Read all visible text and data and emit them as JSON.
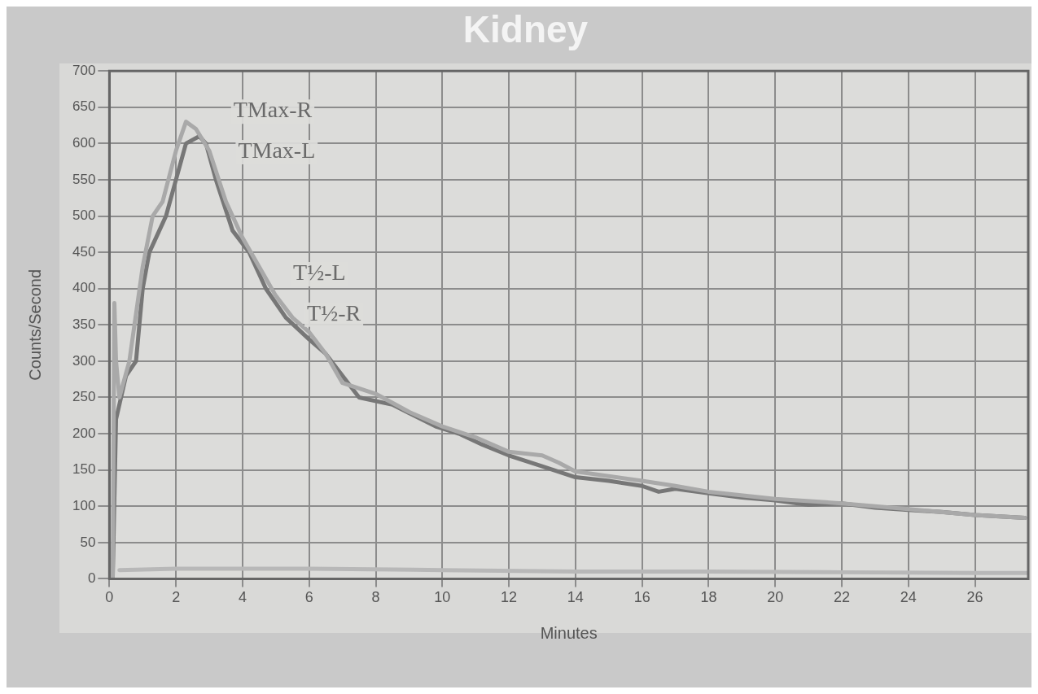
{
  "chart_data": {
    "type": "line",
    "title": "Kidney",
    "xlabel": "Minutes",
    "ylabel": "Counts/Second",
    "xlim": [
      0,
      27.6
    ],
    "ylim": [
      0,
      700
    ],
    "xticks": [
      0,
      2,
      4,
      6,
      8,
      10,
      12,
      14,
      16,
      18,
      20,
      22,
      24,
      26
    ],
    "yticks": [
      0,
      50,
      100,
      150,
      200,
      250,
      300,
      350,
      400,
      450,
      500,
      550,
      600,
      650,
      700
    ],
    "grid": true,
    "legend": false,
    "marker": "none",
    "line_style": "solid",
    "series": [
      {
        "color": "#a9a9a9",
        "x": [
          0.1,
          0.15,
          0.2,
          0.3,
          0.6,
          1.0,
          1.3,
          1.6,
          2.0,
          2.3,
          2.6,
          3.0,
          3.5,
          4.0,
          4.5,
          5.0,
          5.5,
          6.0,
          6.5,
          7.0,
          8.0,
          9.0,
          10,
          11,
          12,
          13,
          13.5,
          14,
          16,
          17,
          18,
          20,
          22,
          24,
          26,
          27.5
        ],
        "values": [
          0,
          380,
          300,
          250,
          300,
          430,
          500,
          520,
          590,
          630,
          620,
          590,
          520,
          470,
          430,
          390,
          360,
          340,
          310,
          270,
          255,
          230,
          210,
          195,
          175,
          170,
          160,
          148,
          135,
          128,
          120,
          110,
          104,
          96,
          88,
          84
        ]
      },
      {
        "color": "#777777",
        "x": [
          0.1,
          0.2,
          0.5,
          0.8,
          1.0,
          1.2,
          1.5,
          1.7,
          2.0,
          2.3,
          2.7,
          2.9,
          3.2,
          3.7,
          4.2,
          4.7,
          5.3,
          6.0,
          6.5,
          7.0,
          7.5,
          8.5,
          9.8,
          10.5,
          11.2,
          12,
          13,
          14,
          15,
          16,
          16.5,
          17,
          18,
          19,
          20,
          21,
          22,
          23,
          24,
          25,
          26,
          27.5
        ],
        "values": [
          0,
          220,
          280,
          300,
          400,
          450,
          480,
          500,
          550,
          600,
          610,
          600,
          550,
          480,
          450,
          400,
          360,
          330,
          310,
          280,
          250,
          240,
          210,
          200,
          185,
          170,
          155,
          140,
          135,
          128,
          120,
          124,
          118,
          112,
          108,
          102,
          104,
          98,
          95,
          92,
          88,
          84
        ]
      },
      {
        "color": "#b8b8b8",
        "x": [
          0.3,
          2,
          6,
          10,
          14,
          18,
          22,
          26,
          27.6
        ],
        "values": [
          12,
          14,
          14,
          12,
          10,
          10,
          9,
          8,
          8
        ]
      }
    ],
    "annotations": [
      "TMax-R",
      "TMax-L",
      "T½-L",
      "T½-R"
    ]
  }
}
